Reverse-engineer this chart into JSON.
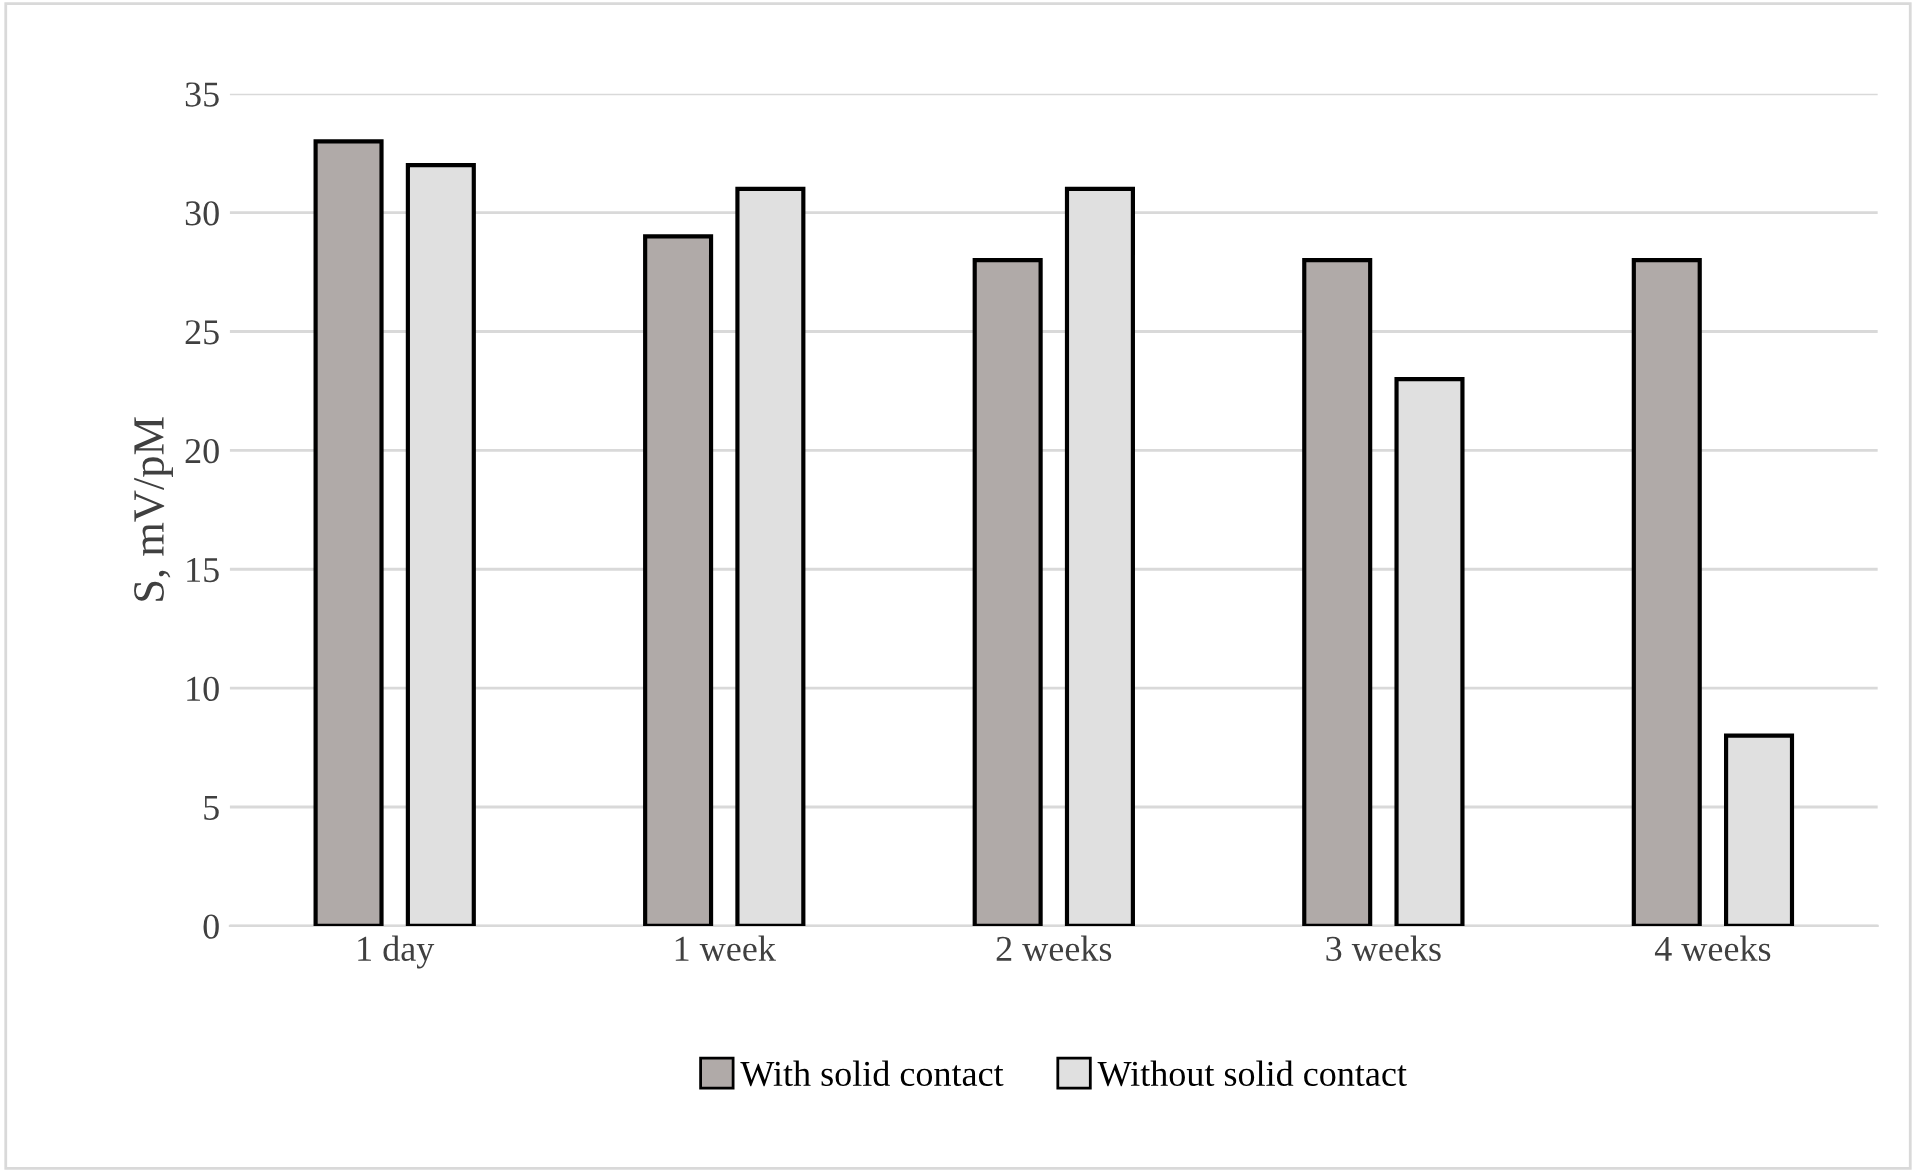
{
  "chart_data": {
    "type": "bar",
    "ylabel": "S, mV/pM",
    "categories": [
      "1 day",
      "1 week",
      "2 weeks",
      "3 weeks",
      "4 weeks"
    ],
    "series": [
      {
        "name": "With solid contact",
        "color": "#b0aaa8",
        "values": [
          33,
          29,
          28,
          28,
          28
        ]
      },
      {
        "name": "Without solid contact",
        "color": "#e0e0e0",
        "values": [
          32,
          31,
          31,
          23,
          8
        ]
      }
    ],
    "ylim": [
      0,
      35
    ],
    "yticks": [
      0,
      5,
      10,
      15,
      20,
      25,
      30,
      35
    ],
    "grid": "y",
    "legend": "bottom"
  }
}
